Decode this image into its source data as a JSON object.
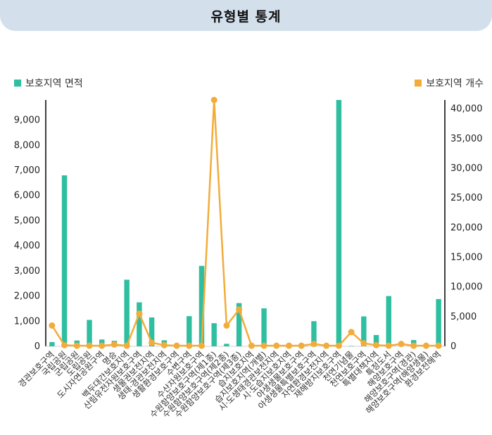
{
  "header": {
    "title": "유형별 통계"
  },
  "legend": {
    "area_label": "보호지역 면적",
    "count_label": "보호지역 개수"
  },
  "colors": {
    "bar": "#2fbfa0",
    "line": "#f2ac3a",
    "header_bg": "#d3e0ec"
  },
  "chart_data": {
    "type": "bar",
    "categories": [
      "경관보호구역",
      "국립공원",
      "군립공원",
      "도립공원",
      "도시자연공원구역",
      "명승",
      "백두대간보호지역",
      "산림유전자원보호구역",
      "생물권보전지역",
      "생태·경관보전지역",
      "생활환경보호구역",
      "수변구역",
      "수산자원보호구역",
      "수원함양보호구역(제1종)",
      "수원함양보호구역(제2종)",
      "수원함양보호구역(제3종)",
      "습지보호지역",
      "습지보호지역(개별)",
      "시·도생태경관보전지역",
      "시·도습지보호지역",
      "야생생물보호구역",
      "야생생물특별보호구역",
      "자연환경보전지역",
      "재해방지보호구역",
      "천연기념물",
      "천연보호구역",
      "특별대책지역",
      "특정도서",
      "해양보호구역",
      "해양보호구역(경관)",
      "해양보호구역(해양생물)",
      "환경보전해역"
    ],
    "series": [
      {
        "name": "보호지역 면적",
        "axis": "left",
        "type": "bar",
        "values": [
          170,
          6800,
          230,
          1050,
          270,
          220,
          2650,
          1750,
          1150,
          240,
          20,
          1200,
          3200,
          920,
          100,
          1720,
          15,
          1510,
          15,
          15,
          15,
          1000,
          15,
          9800,
          15,
          1190,
          450,
          2000,
          20,
          250,
          15,
          1880
        ]
      },
      {
        "name": "보호지역 개수",
        "axis": "right",
        "type": "line",
        "values": [
          3500,
          200,
          100,
          100,
          100,
          300,
          100,
          5500,
          600,
          200,
          100,
          100,
          100,
          41500,
          3500,
          6200,
          100,
          100,
          100,
          100,
          100,
          400,
          100,
          100,
          2400,
          500,
          200,
          100,
          400,
          100,
          100,
          100
        ]
      }
    ],
    "y_left": {
      "min": 0,
      "max": 9800,
      "ticks": [
        "0",
        "1,000",
        "2,000",
        "3,000",
        "4,000",
        "5,000",
        "6,000",
        "7,000",
        "8,000",
        "9,000"
      ],
      "tick_values": [
        0,
        1000,
        2000,
        3000,
        4000,
        5000,
        6000,
        7000,
        8000,
        9000
      ]
    },
    "y_right": {
      "min": 0,
      "max": 41500,
      "ticks": [
        "0",
        "5,000",
        "10,000",
        "15,000",
        "20,000",
        "25,000",
        "30,000",
        "35,000",
        "40,000"
      ],
      "tick_values": [
        0,
        5000,
        10000,
        15000,
        20000,
        25000,
        30000,
        35000,
        40000
      ]
    },
    "grid": false,
    "legend_position": "top"
  }
}
